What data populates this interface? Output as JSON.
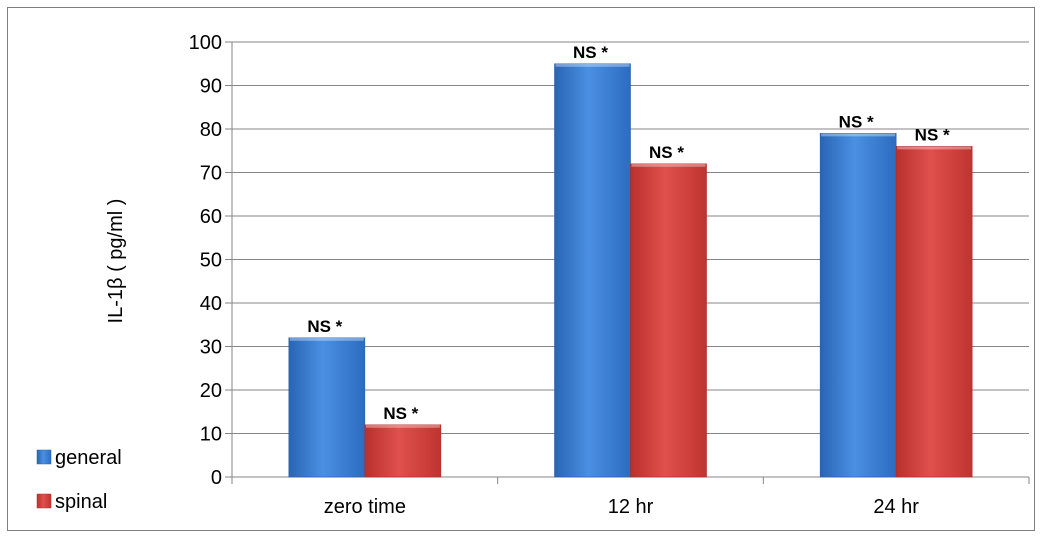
{
  "chart_data": {
    "type": "bar",
    "title": "",
    "xlabel": "",
    "ylabel": "IL-1β ( pg/ml )",
    "ylim": [
      0,
      100
    ],
    "yticks": [
      0,
      10,
      20,
      30,
      40,
      50,
      60,
      70,
      80,
      90,
      100
    ],
    "categories": [
      "zero time",
      "12 hr",
      "24 hr"
    ],
    "series": [
      {
        "name": "general",
        "color": "#3a7fd0",
        "values": [
          32,
          95,
          79
        ],
        "labels": [
          "NS *",
          "NS *",
          "NS *"
        ]
      },
      {
        "name": "spinal",
        "color": "#d43b38",
        "values": [
          12,
          72,
          76
        ],
        "labels": [
          "NS *",
          "NS *",
          "NS *"
        ]
      }
    ],
    "grid": true,
    "legend": "bottom-left"
  }
}
